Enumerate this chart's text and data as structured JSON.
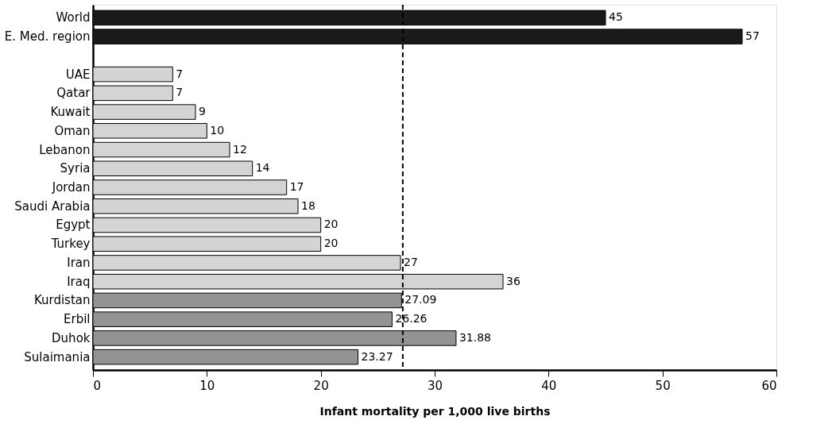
{
  "chart_data": {
    "type": "bar",
    "orientation": "horizontal",
    "xlabel": "Infant mortality per 1,000 live births",
    "categories": [
      "World",
      "E. Med. region",
      null,
      "UAE",
      "Qatar",
      "Kuwait",
      "Oman",
      "Lebanon",
      "Syria",
      "Jordan",
      "Saudi Arabia",
      "Egypt",
      "Turkey",
      "Iran",
      "Iraq",
      "Kurdistan",
      "Erbil",
      "Duhok",
      "Sulaimania"
    ],
    "values": [
      45,
      57,
      null,
      7,
      7,
      9,
      10,
      12,
      14,
      17,
      18,
      20,
      20,
      27,
      36,
      27.09,
      26.26,
      31.88,
      23.27
    ],
    "colors": [
      "#1a1a1a",
      "#1a1a1a",
      null,
      "#d4d4d4",
      "#d4d4d4",
      "#d4d4d4",
      "#d4d4d4",
      "#d4d4d4",
      "#d4d4d4",
      "#d4d4d4",
      "#d4d4d4",
      "#d4d4d4",
      "#d4d4d4",
      "#d4d4d4",
      "#d4d4d4",
      "#939393",
      "#939393",
      "#939393",
      "#939393"
    ],
    "xlim": [
      0,
      60
    ],
    "xticks": [
      0,
      10,
      20,
      30,
      40,
      50,
      60
    ],
    "ref_lines": [
      {
        "axis": "x",
        "value": 27.2,
        "line_style": "dashed",
        "color": "#000000"
      }
    ],
    "data_labels": true
  }
}
